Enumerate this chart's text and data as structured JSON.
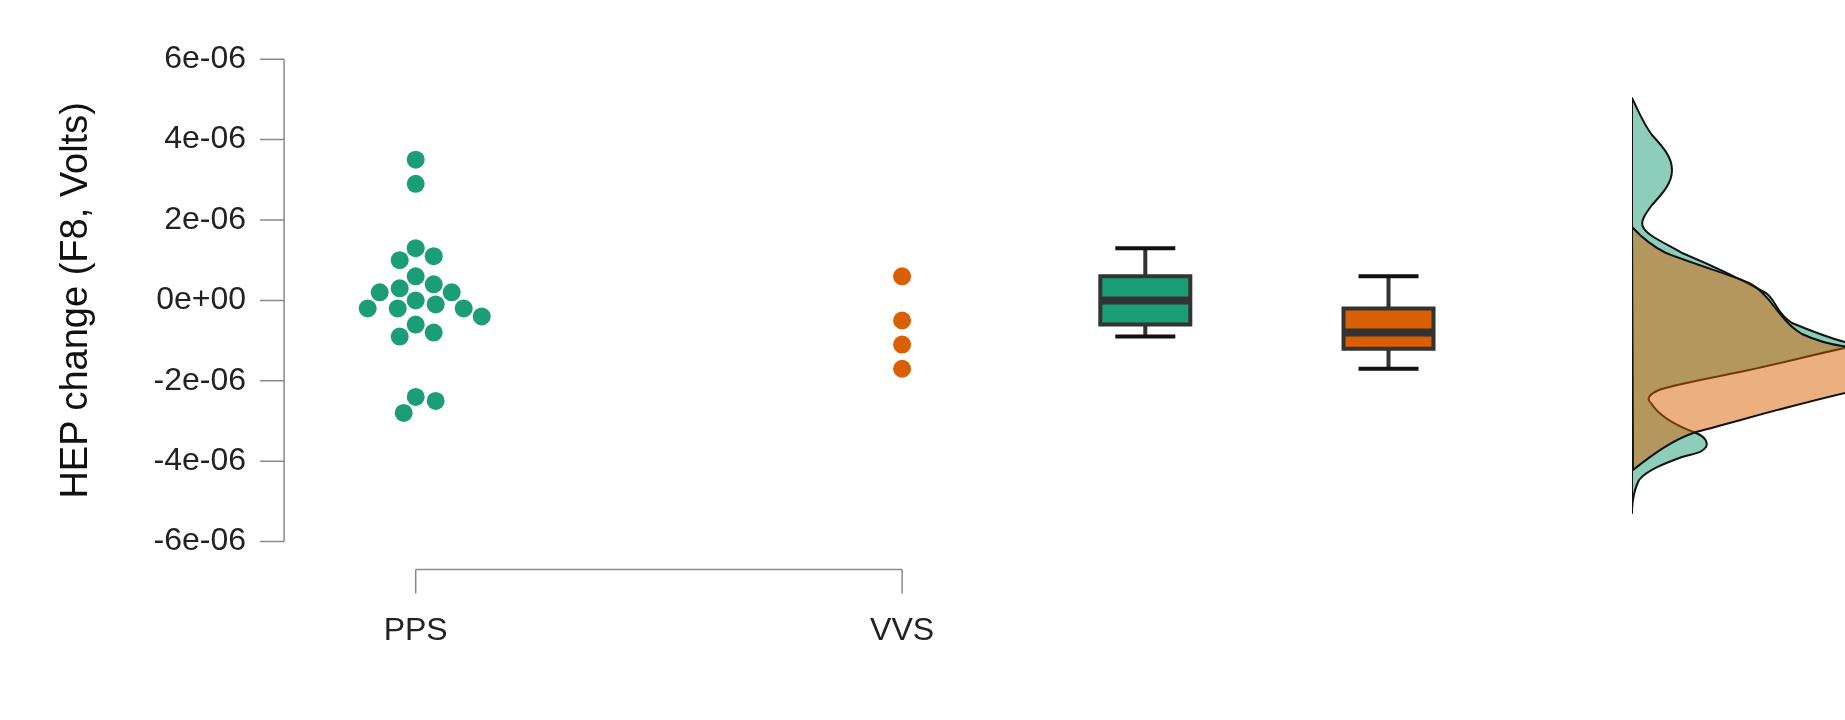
{
  "chart_data": {
    "type": "box",
    "ylabel": "HEP change (F8, Volts)",
    "marker": "circle",
    "categories": [
      "PPS",
      null,
      "VVS",
      null,
      null
    ],
    "ylim": [
      -6e-06,
      6e-06
    ],
    "yticks": [
      {
        "value": -6e-06,
        "label": "-6e-06"
      },
      {
        "value": -4e-06,
        "label": "-4e-06"
      },
      {
        "value": -2e-06,
        "label": "-2e-06"
      },
      {
        "value": 0,
        "label": "0e+00"
      },
      {
        "value": 2e-06,
        "label": "2e-06"
      },
      {
        "value": 4e-06,
        "label": "4e-06"
      },
      {
        "value": 6e-06,
        "label": "6e-06"
      }
    ],
    "series": [
      {
        "type": "scatter",
        "color": "#1b9e77",
        "x": [
          "PPS",
          "PPS",
          "PPS",
          "PPS",
          "PPS",
          "PPS",
          "PPS",
          "PPS",
          "PPS",
          "PPS",
          "PPS",
          "PPS",
          "PPS",
          "PPS",
          "PPS",
          "PPS",
          "PPS",
          "PPS",
          "PPS",
          "PPS",
          "PPS",
          "PPS"
        ],
        "values": [
          3.5e-06,
          2.9e-06,
          1e-06,
          1.3e-06,
          1.1e-06,
          6e-07,
          4e-07,
          3e-07,
          2e-07,
          2e-07,
          -1e-07,
          -2e-07,
          0,
          -2e-07,
          -2e-07,
          -4e-07,
          -6e-07,
          -8e-07,
          -9e-07,
          -2.4e-06,
          -2.5e-06,
          -2.8e-06
        ]
      },
      {
        "type": "scatter",
        "color": "#d95f02",
        "x": [
          "VVS",
          "VVS",
          "VVS",
          "VVS"
        ],
        "values": [
          6e-07,
          -5e-07,
          -1.1e-06,
          -1.7e-06
        ]
      },
      {
        "color": "#1b9e77",
        "boxes": [
          null,
          null,
          null,
          {
            "low": -9e-07,
            "q1": -6e-07,
            "median": 0,
            "q3": 6e-07,
            "high": 1.3e-06
          },
          null
        ]
      },
      {
        "color": "#d95f02",
        "boxes": [
          null,
          null,
          null,
          null,
          {
            "low": -1.7e-06,
            "q1": -1.2e-06,
            "median": -8e-07,
            "q3": -2e-07,
            "high": 6e-07
          }
        ]
      }
    ]
  }
}
